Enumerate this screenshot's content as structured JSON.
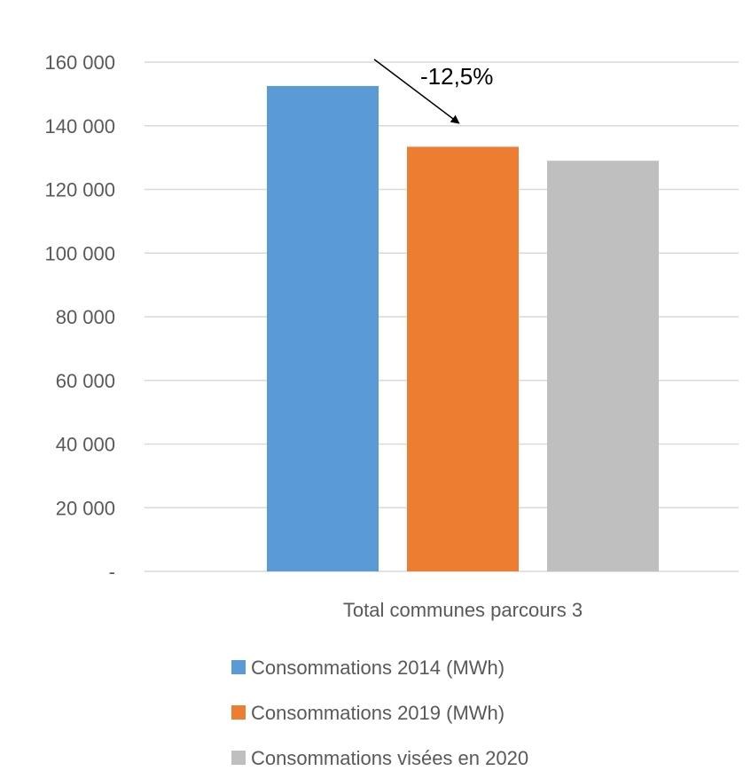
{
  "chart_data": {
    "type": "bar",
    "categories": [
      "Total communes parcours 3"
    ],
    "series": [
      {
        "name": "Consommations 2014 (MWh)",
        "values": [
          152500
        ],
        "color": "#5b9bd5"
      },
      {
        "name": "Consommations 2019 (MWh)",
        "values": [
          133400
        ],
        "color": "#ed7d31"
      },
      {
        "name": "Consommations visées en 2020",
        "values": [
          129000
        ],
        "color": "#bfbfbf"
      }
    ],
    "ylim": [
      0,
      160000
    ],
    "yticks": [
      {
        "value": 0,
        "label": "-"
      },
      {
        "value": 20000,
        "label": "20 000"
      },
      {
        "value": 40000,
        "label": "40 000"
      },
      {
        "value": 60000,
        "label": "60 000"
      },
      {
        "value": 80000,
        "label": "80 000"
      },
      {
        "value": 100000,
        "label": "100 000"
      },
      {
        "value": 120000,
        "label": "120 000"
      },
      {
        "value": 140000,
        "label": "140 000"
      },
      {
        "value": 160000,
        "label": "160 000"
      }
    ],
    "grid": true,
    "legend_position": "bottom",
    "annotation": {
      "text": "-12,5%",
      "from_series": 0,
      "to_series": 1
    }
  }
}
